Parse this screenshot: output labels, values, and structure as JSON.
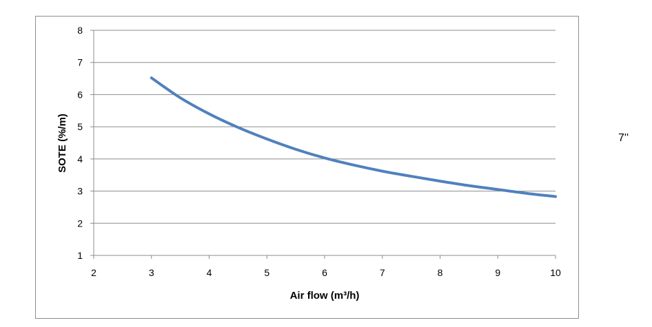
{
  "chart_data": {
    "type": "line",
    "xlabel": "Air flow (m³/h)",
    "ylabel": "SOTE (%/m)",
    "xlim": [
      2,
      10
    ],
    "ylim": [
      1,
      8
    ],
    "x_ticks": [
      2,
      3,
      4,
      5,
      6,
      7,
      8,
      9,
      10
    ],
    "y_ticks": [
      1,
      2,
      3,
      4,
      5,
      6,
      7,
      8
    ],
    "grid": "horizontal",
    "series": [
      {
        "color": "#4f81bd",
        "x": [
          3.0,
          3.5,
          4.0,
          4.5,
          5.0,
          5.5,
          6.0,
          6.5,
          7.0,
          7.5,
          8.0,
          8.5,
          9.0,
          9.5,
          10.0
        ],
        "y": [
          6.52,
          5.9,
          5.4,
          4.98,
          4.62,
          4.3,
          4.03,
          3.81,
          3.62,
          3.46,
          3.31,
          3.17,
          3.05,
          2.93,
          2.83
        ]
      }
    ]
  },
  "side_note": "7''"
}
